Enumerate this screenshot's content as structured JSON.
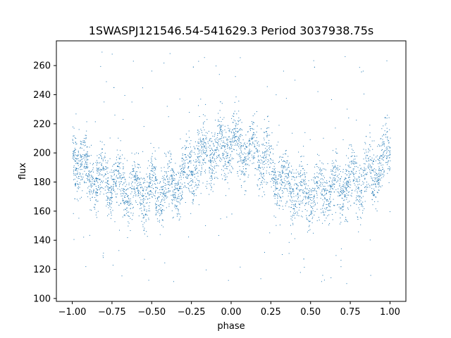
{
  "chart_data": {
    "type": "scatter",
    "title": "1SWASPJ121546.54-541629.3 Period 3037938.75s",
    "xlabel": "phase",
    "ylabel": "flux",
    "xlim": [
      -1.1,
      1.1
    ],
    "ylim": [
      98,
      277
    ],
    "xticks": [
      -1.0,
      -0.75,
      -0.5,
      -0.25,
      0.0,
      0.25,
      0.5,
      0.75,
      1.0
    ],
    "xtick_labels": [
      "−1.00",
      "−0.75",
      "−0.50",
      "−0.25",
      "0.00",
      "0.25",
      "0.50",
      "0.75",
      "1.00"
    ],
    "yticks": [
      100,
      120,
      140,
      160,
      180,
      200,
      220,
      240,
      260
    ],
    "ytick_labels": [
      "100",
      "120",
      "140",
      "160",
      "180",
      "200",
      "220",
      "240",
      "260"
    ],
    "grid": false,
    "point_color": "#1f77b4",
    "series": [
      {
        "name": "",
        "note_phase_range": [
          -1.0,
          1.0
        ],
        "profile": {
          "phase": [
            -1.0,
            -0.95,
            -0.9,
            -0.85,
            -0.8,
            -0.75,
            -0.7,
            -0.65,
            -0.6,
            -0.55,
            -0.5,
            -0.45,
            -0.4,
            -0.35,
            -0.3,
            -0.25,
            -0.2,
            -0.15,
            -0.1,
            -0.05,
            0.0
          ],
          "flux": [
            200,
            195,
            185,
            182,
            180,
            181,
            178,
            176,
            175,
            174,
            173,
            172,
            175,
            178,
            183,
            190,
            197,
            200,
            198,
            205,
            207
          ]
        }
      }
    ]
  }
}
